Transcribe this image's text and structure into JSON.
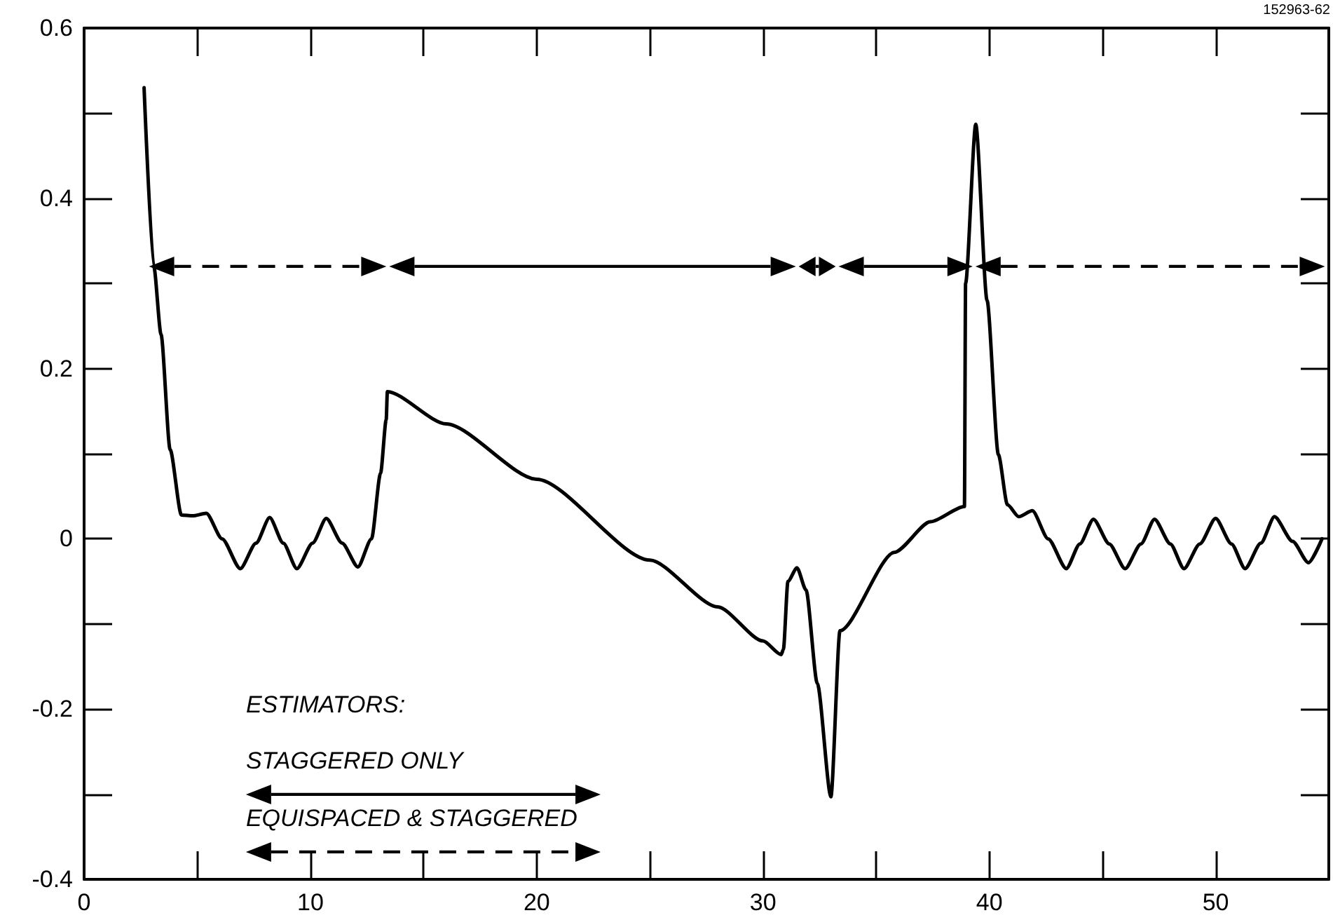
{
  "chart_data": {
    "type": "line",
    "legend_title": "ESTIMATORS:",
    "annotations": [
      "STAGGERED ONLY",
      "EQUISPACED & STAGGERED",
      "152963-62"
    ],
    "series": [
      {
        "color": "#000000",
        "x": [
          2.65,
          3.08,
          3.4,
          3.8,
          4.3,
          4.8,
          5.4,
          6.1,
          6.9,
          7.6,
          8.2,
          8.8,
          9.4,
          10.1,
          10.7,
          11.4,
          12.1,
          12.7,
          13.1,
          13.35,
          13.4,
          16,
          20,
          25,
          28,
          30,
          30.8,
          30.9,
          31.1,
          31.5,
          31.9,
          32.4,
          33.0,
          33.4,
          35.8,
          37.4,
          38.9,
          38.95,
          39.4,
          39.9,
          40.4,
          40.8,
          41.3,
          41.9,
          42.6,
          43.4,
          44.0,
          44.6,
          45.3,
          46.0,
          46.7,
          47.3,
          48.0,
          48.6,
          49.3,
          50.0,
          50.7,
          51.3,
          52.0,
          52.6,
          53.4,
          54.1,
          54.7
        ],
        "values": [
          0.53,
          0.32,
          0.24,
          0.105,
          0.028,
          0.027,
          0.03,
          0.0,
          -0.035,
          -0.005,
          0.025,
          -0.005,
          -0.035,
          -0.005,
          0.024,
          -0.005,
          -0.033,
          0.0,
          0.077,
          0.14,
          0.173,
          0.135,
          0.07,
          -0.025,
          -0.08,
          -0.12,
          -0.136,
          -0.13,
          -0.05,
          -0.034,
          -0.06,
          -0.17,
          -0.303,
          -0.108,
          -0.016,
          0.02,
          0.038,
          0.3,
          0.487,
          0.28,
          0.099,
          0.04,
          0.026,
          0.033,
          0.0,
          -0.035,
          -0.006,
          0.023,
          -0.006,
          -0.035,
          -0.006,
          0.023,
          -0.006,
          -0.035,
          -0.006,
          0.024,
          -0.006,
          -0.035,
          -0.005,
          0.026,
          -0.003,
          -0.028,
          0.0
        ]
      }
    ],
    "xlim": [
      0,
      55
    ],
    "ylim": [
      -0.4,
      0.6
    ],
    "xticks": [
      0,
      10,
      20,
      30,
      40,
      50
    ],
    "yticks": [
      -0.4,
      -0.2,
      0,
      0.2,
      0.4,
      0.6
    ],
    "grid": false,
    "marker": "none",
    "line_style": "solid"
  }
}
